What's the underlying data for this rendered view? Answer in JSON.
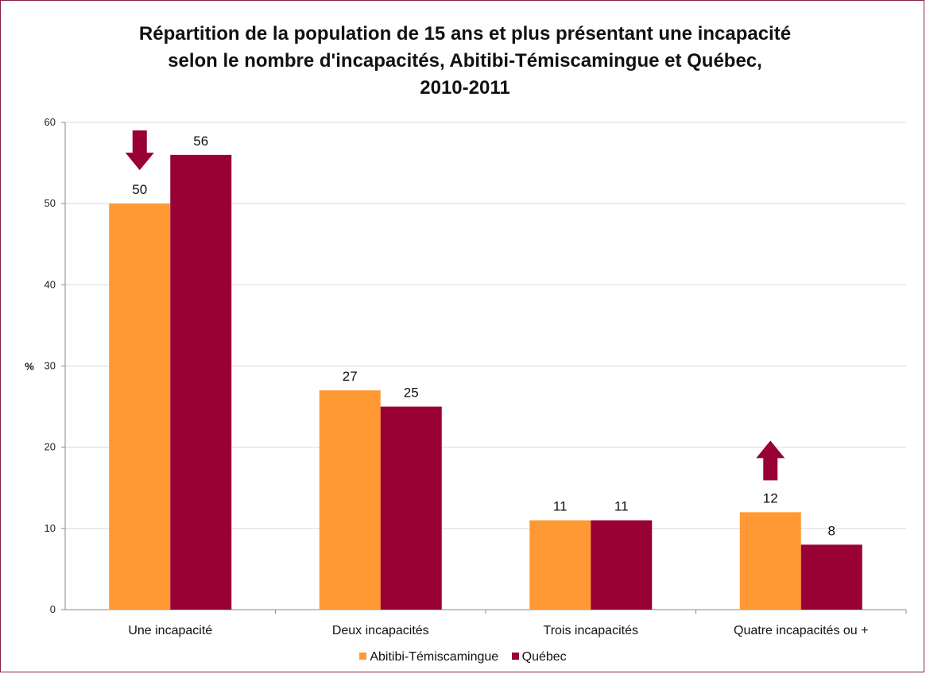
{
  "colors": {
    "abitibi": "#ff9933",
    "quebec": "#990033",
    "arrow": "#990033",
    "grid": "#d9d9d9",
    "frame": "#8a1f46"
  },
  "chart_data": {
    "type": "bar",
    "title_lines": [
      "Répartition de la population de 15 ans et plus présentant une incapacité",
      "selon le nombre d'incapacités, Abitibi-Témiscamingue et Québec,",
      "2010-2011"
    ],
    "xlabel": "",
    "ylabel": "%",
    "ylim": [
      0,
      60
    ],
    "yticks": [
      0,
      10,
      20,
      30,
      40,
      50,
      60
    ],
    "grid": true,
    "legend_position": "bottom",
    "categories": [
      "Une incapacité",
      "Deux incapacités",
      "Trois incapacités",
      "Quatre incapacités ou +"
    ],
    "series": [
      {
        "name": "Abitibi-Témiscamingue",
        "values": [
          50,
          27,
          11,
          12
        ]
      },
      {
        "name": "Québec",
        "values": [
          56,
          25,
          11,
          8
        ]
      }
    ],
    "annotations": [
      {
        "type": "arrow-down",
        "category": "Une incapacité",
        "series": "Abitibi-Témiscamingue"
      },
      {
        "type": "arrow-up",
        "category": "Quatre incapacités ou +",
        "series": "Abitibi-Témiscamingue"
      }
    ]
  }
}
